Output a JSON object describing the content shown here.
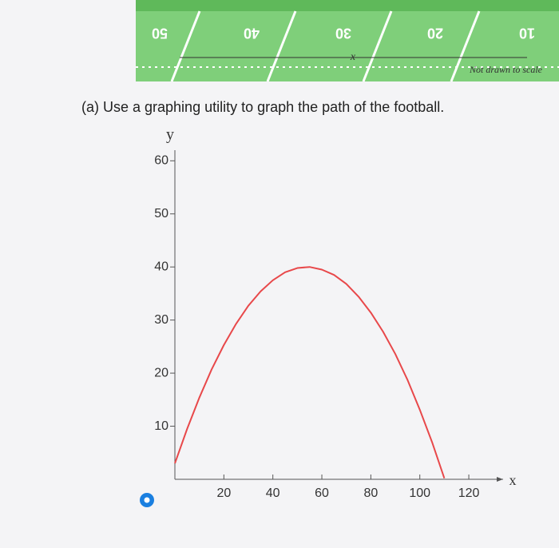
{
  "field": {
    "yard_numbers": [
      "50",
      "40",
      "30",
      "20",
      "10"
    ],
    "axis_label": "x",
    "note": "Not drawn to scale"
  },
  "question": "(a) Use a graphing utility to graph the path of the football.",
  "chart_data": {
    "type": "line",
    "x": [
      0,
      5,
      10,
      15,
      20,
      25,
      30,
      35,
      40,
      45,
      50,
      55,
      60,
      65,
      70,
      75,
      80,
      85,
      90,
      95,
      100,
      105,
      110
    ],
    "series": [
      {
        "color": "#e8484a",
        "values": [
          3.0,
          9.5,
          15.4,
          20.7,
          25.3,
          29.3,
          32.7,
          35.4,
          37.5,
          39.0,
          39.8,
          40.0,
          39.5,
          38.5,
          36.8,
          34.4,
          31.4,
          27.8,
          23.6,
          18.7,
          13.1,
          7.0,
          0.2
        ]
      }
    ],
    "x_label": "x",
    "y_label": "y",
    "xlim": [
      0,
      134
    ],
    "ylim": [
      0,
      62
    ],
    "xticks": [
      20,
      40,
      60,
      80,
      100,
      120
    ],
    "yticks": [
      10,
      20,
      30,
      40,
      50,
      60
    ]
  }
}
